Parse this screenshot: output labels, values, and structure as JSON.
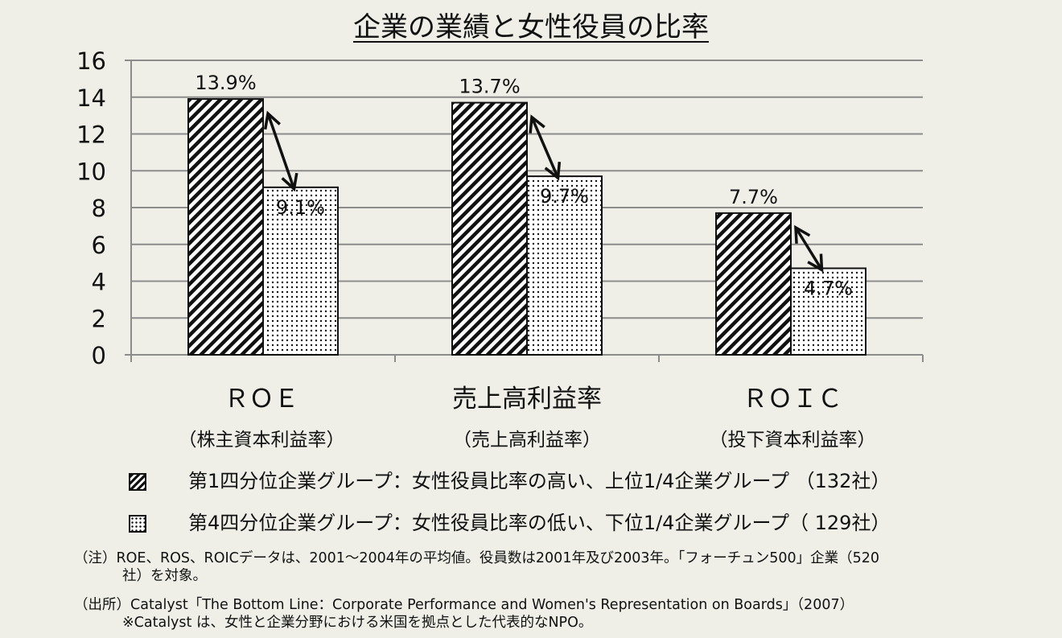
{
  "chart_data": {
    "type": "bar",
    "title": "企業の業績と女性役員の比率",
    "ylim": [
      0,
      16
    ],
    "yticks": [
      0,
      2,
      4,
      6,
      8,
      10,
      12,
      14,
      16
    ],
    "categories": [
      {
        "label": "ＲＯＥ",
        "sublabel": "（株主資本利益率）"
      },
      {
        "label": "売上高利益率",
        "sublabel": "（売上高利益率）"
      },
      {
        "label": "ＲＯＩＣ",
        "sublabel": "（投下資本利益率）"
      }
    ],
    "series": [
      {
        "key": "q1",
        "pattern": "hatch",
        "values": [
          13.9,
          13.7,
          7.7
        ],
        "labels": [
          "13.9%",
          "13.7%",
          "7.7%"
        ]
      },
      {
        "key": "q4",
        "pattern": "dots",
        "values": [
          9.1,
          9.7,
          4.7
        ],
        "labels": [
          "9.1%",
          "9.7%",
          "4.7%"
        ]
      }
    ],
    "grid": true
  },
  "legend": [
    {
      "pattern": "hatch",
      "text": "第1四分位企業グループ：女性役員比率の高い、上位1/4企業グループ （132社）"
    },
    {
      "pattern": "dots",
      "text": "第4四分位企業グループ：女性役員比率の低い、下位1/4企業グループ（ 129社）"
    }
  ],
  "notes": {
    "note1_a": "（注）ROE、ROS、ROICデータは、2001～2004年の平均値。役員数は2001年及び2003年。「フォーチュン500」企業（520",
    "note1_b": "社）を対象。",
    "source_a": "（出所）Catalyst「The Bottom Line：Corporate Performance and Women's Representation on Boards」（2007）",
    "source_b": "※Catalyst は、女性と企業分野における米国を拠点とした代表的なNPO。"
  },
  "colors": {
    "background": "#efefe8",
    "grid": "#8c8c8c",
    "bar_stroke": "#111111"
  }
}
